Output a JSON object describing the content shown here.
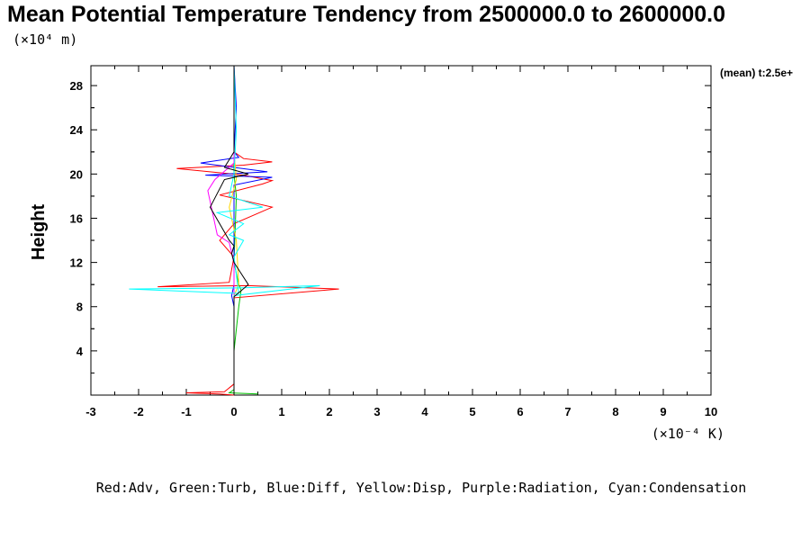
{
  "chart_data": {
    "type": "line",
    "title": "Mean Potential Temperature Tendency from 2500000.0 to 2600000.0",
    "y_unit_label": "(×10⁴ m)",
    "x_unit_label": "(×10⁻⁴ K)",
    "ylabel": "Height",
    "xlabel": "",
    "time_note": "(mean) t:2.5e+",
    "legend_text": "Red:Adv, Green:Turb, Blue:Diff, Yellow:Disp, Purple:Radiation, Cyan:Condensation",
    "xlim": [
      -3,
      10
    ],
    "ylim": [
      0,
      29.8
    ],
    "xticks": [
      -3,
      -2,
      -1,
      0,
      1,
      2,
      3,
      4,
      5,
      6,
      7,
      8,
      9,
      10
    ],
    "xtick_labels": [
      "-3",
      "-2",
      "-1",
      "0",
      "1",
      "2",
      "3",
      "4",
      "5",
      "6",
      "7",
      "8",
      "9",
      "10"
    ],
    "yticks": [
      4,
      8,
      12,
      16,
      20,
      24,
      28
    ],
    "ytick_labels": [
      "4",
      "8",
      "12",
      "16",
      "20",
      "24",
      "28"
    ],
    "grid": false,
    "series": [
      {
        "color": "#ff0000",
        "x": [
          0.0,
          -0.3,
          -1.0,
          -0.2,
          0.0,
          0.0,
          0.0,
          2.2,
          0.3,
          -1.6,
          -0.1,
          0.0,
          -0.3,
          0.0,
          0.8,
          0.2,
          -0.3,
          0.6,
          0.8,
          0.2,
          -1.2,
          0.2,
          0.8,
          0.2,
          0.0,
          0.0,
          0.0
        ],
        "y": [
          0.0,
          0.1,
          0.2,
          0.3,
          1.0,
          4.0,
          8.8,
          9.6,
          9.9,
          9.8,
          10.2,
          12.5,
          14.0,
          15.5,
          17.0,
          17.6,
          18.1,
          19.1,
          19.4,
          19.9,
          20.5,
          20.8,
          21.1,
          21.4,
          22.0,
          26.0,
          29.8
        ]
      },
      {
        "color": "#00c000",
        "x": [
          0.5,
          -0.1,
          0.0,
          0.0,
          0.1,
          0.15,
          0.1,
          0.0,
          0.05,
          0.0,
          0.0,
          0.0
        ],
        "y": [
          0.1,
          0.2,
          0.5,
          4.0,
          8.0,
          9.5,
          10.0,
          12.0,
          18.0,
          20.0,
          24.0,
          29.8
        ]
      },
      {
        "color": "#0000ff",
        "x": [
          0.0,
          0.0,
          -0.05,
          0.0,
          0.0,
          0.8,
          -0.6,
          0.7,
          -0.7,
          0.1,
          0.0,
          0.05,
          0.0
        ],
        "y": [
          0.0,
          8.0,
          9.0,
          10.0,
          19.0,
          19.7,
          19.9,
          20.2,
          21.0,
          21.5,
          22.0,
          26.0,
          29.8
        ]
      },
      {
        "color": "#ffd700",
        "x": [
          0.0,
          0.0,
          0.1,
          0.05,
          -0.1,
          0.05,
          0.0,
          0.0
        ],
        "y": [
          0.0,
          9.0,
          10.0,
          14.0,
          17.0,
          19.5,
          22.0,
          29.8
        ]
      },
      {
        "color": "#ff00ff",
        "x": [
          0.0,
          0.0,
          -0.1,
          -0.35,
          -0.55,
          -0.4,
          0.0,
          0.0
        ],
        "y": [
          0.0,
          12.0,
          13.8,
          14.5,
          18.5,
          19.5,
          21.0,
          29.8
        ]
      },
      {
        "color": "#00ffff",
        "x": [
          0.0,
          0.0,
          0.0,
          1.8,
          0.1,
          -2.2,
          0.1,
          0.0,
          0.2,
          -0.1,
          0.2,
          -0.35,
          0.6,
          -0.1,
          0.0,
          0.05,
          0.0
        ],
        "y": [
          0.0,
          4.0,
          9.0,
          9.9,
          9.7,
          9.6,
          9.2,
          12.5,
          14.0,
          14.5,
          15.5,
          16.5,
          17.0,
          18.0,
          20.0,
          24.0,
          29.8
        ]
      },
      {
        "color": "#000000",
        "x": [
          0.0,
          0.0,
          0.3,
          0.0,
          -0.05,
          0.0,
          -0.1,
          -0.5,
          -0.2,
          0.3,
          -0.2,
          0.0,
          0.0
        ],
        "y": [
          0.0,
          8.9,
          10.0,
          12.0,
          12.8,
          13.5,
          14.0,
          17.0,
          19.5,
          20.0,
          20.6,
          22.0,
          29.8
        ]
      }
    ]
  }
}
